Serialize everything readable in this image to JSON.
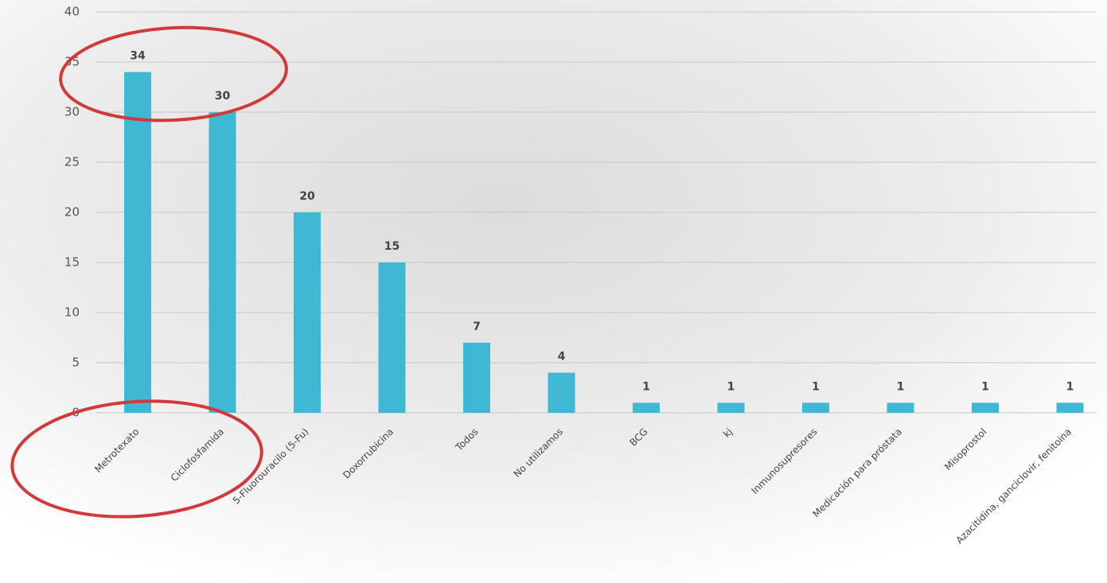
{
  "chart_data": {
    "type": "bar",
    "categories": [
      "Metrotexato",
      "Ciclofosfamida",
      "5-Fluorouracilo (5-Fu)",
      "Doxorrubicina",
      "Todos",
      "No utilizamos",
      "BCG",
      "kj",
      "Inmunosupresores",
      "Medicación para próstata",
      "Misoprostol",
      "Azacitidina, ganciclovir, fenitoina"
    ],
    "values": [
      34,
      30,
      20,
      15,
      7,
      4,
      1,
      1,
      1,
      1,
      1,
      1
    ],
    "color": "#3fb8d4",
    "ylim": [
      0,
      40
    ],
    "yticks": [
      0,
      5,
      10,
      15,
      20,
      25,
      30,
      35,
      40
    ],
    "grid": true
  }
}
